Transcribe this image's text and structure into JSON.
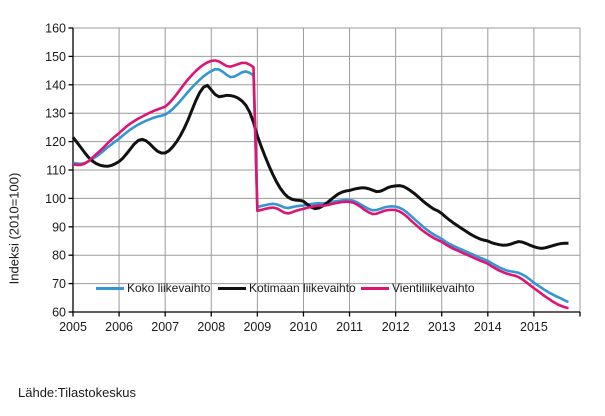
{
  "source": "Lähde:Tilastokeskus",
  "chart_data": {
    "type": "line",
    "title": "",
    "xlabel": "",
    "ylabel": "Indeksi (2010=100)",
    "ylim": [
      60,
      160
    ],
    "y_ticks": [
      60,
      70,
      80,
      90,
      100,
      110,
      120,
      130,
      140,
      150,
      160
    ],
    "x_range": [
      2005,
      2016
    ],
    "x_labels": [
      "2005",
      "2006",
      "2007",
      "2008",
      "2009",
      "2010",
      "2011",
      "2012",
      "2013",
      "2014",
      "2015"
    ],
    "points_per_year": 12,
    "x_start_year": 2005,
    "grid": true,
    "grid_color": "#9B9B9B",
    "axis_color": "#000000",
    "legend_position": "bottom-inside",
    "series": [
      {
        "name": "Koko liikevaihto",
        "color": "#3496D2",
        "line_width": 2.6,
        "values": [
          112.5,
          112.3,
          112.2,
          112.4,
          113.0,
          113.8,
          114.7,
          115.7,
          116.8,
          118.0,
          119.0,
          120.0,
          121.0,
          122.2,
          123.3,
          124.3,
          125.2,
          126.0,
          126.7,
          127.3,
          127.9,
          128.4,
          128.8,
          129.1,
          129.5,
          130.4,
          131.5,
          132.9,
          134.4,
          136.0,
          137.6,
          139.1,
          140.5,
          141.8,
          143.0,
          144.0,
          144.8,
          145.5,
          145.4,
          144.6,
          143.5,
          142.7,
          142.9,
          143.6,
          144.4,
          144.7,
          144.2,
          143.3,
          97.0,
          97.3,
          97.6,
          97.9,
          98.1,
          97.9,
          97.4,
          96.8,
          96.6,
          96.9,
          97.2,
          97.4,
          97.5,
          97.8,
          98.0,
          98.2,
          98.3,
          98.2,
          98.4,
          98.6,
          98.9,
          99.1,
          99.3,
          99.4,
          99.4,
          99.2,
          98.6,
          97.8,
          97.0,
          96.3,
          95.8,
          95.9,
          96.3,
          96.8,
          97.1,
          97.2,
          97.1,
          96.7,
          96.0,
          95.0,
          93.8,
          92.6,
          91.4,
          90.2,
          89.1,
          88.1,
          87.2,
          86.5,
          85.7,
          84.8,
          84.0,
          83.3,
          82.7,
          82.1,
          81.5,
          80.9,
          80.3,
          79.7,
          79.1,
          78.6,
          78.0,
          77.2,
          76.4,
          75.7,
          75.1,
          74.6,
          74.3,
          74.1,
          73.8,
          73.2,
          72.4,
          71.4,
          70.3,
          69.4,
          68.5,
          67.6,
          66.8,
          66.1,
          65.4,
          64.8,
          64.1,
          63.5
        ]
      },
      {
        "name": "Kotimaan liikevaihto",
        "color": "#111111",
        "line_width": 3.0,
        "values": [
          121.5,
          119.8,
          118.0,
          116.2,
          114.5,
          113.2,
          112.3,
          111.7,
          111.4,
          111.3,
          111.6,
          112.2,
          113.0,
          114.2,
          115.8,
          117.5,
          119.2,
          120.4,
          120.8,
          120.3,
          119.2,
          117.8,
          116.6,
          116.0,
          116.0,
          116.8,
          118.2,
          120.0,
          122.2,
          124.8,
          127.8,
          131.2,
          134.5,
          137.3,
          139.2,
          139.8,
          138.2,
          136.6,
          135.8,
          136.0,
          136.3,
          136.2,
          135.9,
          135.3,
          134.3,
          132.8,
          130.4,
          126.8,
          122.0,
          118.3,
          114.8,
          111.5,
          108.5,
          105.8,
          103.5,
          101.7,
          100.4,
          99.7,
          99.4,
          99.3,
          99.0,
          97.9,
          96.9,
          96.4,
          96.6,
          97.3,
          98.3,
          99.4,
          100.5,
          101.5,
          102.2,
          102.6,
          102.8,
          103.2,
          103.5,
          103.7,
          103.7,
          103.4,
          102.9,
          102.4,
          102.5,
          103.1,
          103.8,
          104.2,
          104.4,
          104.5,
          104.2,
          103.5,
          102.6,
          101.6,
          100.4,
          99.2,
          98.1,
          97.1,
          96.2,
          95.6,
          94.7,
          93.5,
          92.4,
          91.4,
          90.5,
          89.6,
          88.7,
          87.8,
          87.0,
          86.3,
          85.7,
          85.3,
          85.0,
          84.4,
          84.0,
          83.7,
          83.5,
          83.6,
          83.9,
          84.4,
          84.8,
          84.6,
          84.1,
          83.5,
          83.0,
          82.6,
          82.4,
          82.6,
          83.0,
          83.4,
          83.8,
          84.1,
          84.2,
          84.2
        ]
      },
      {
        "name": "Vientiliikevaihto",
        "color": "#DD1472",
        "line_width": 2.6,
        "values": [
          112.0,
          111.8,
          111.8,
          112.2,
          113.1,
          114.3,
          115.5,
          116.7,
          118.0,
          119.4,
          120.7,
          121.9,
          123.0,
          124.2,
          125.4,
          126.4,
          127.3,
          128.1,
          128.8,
          129.5,
          130.2,
          130.8,
          131.3,
          131.8,
          132.3,
          133.5,
          135.0,
          136.7,
          138.5,
          140.3,
          142.0,
          143.5,
          144.9,
          146.1,
          147.1,
          147.9,
          148.4,
          148.6,
          148.2,
          147.4,
          146.6,
          146.4,
          146.8,
          147.3,
          147.7,
          147.7,
          147.1,
          146.2,
          95.6,
          95.9,
          96.3,
          96.6,
          96.8,
          96.5,
          95.8,
          95.0,
          94.7,
          95.1,
          95.6,
          96.0,
          96.3,
          96.7,
          97.0,
          97.3,
          97.5,
          97.4,
          97.6,
          97.9,
          98.2,
          98.5,
          98.7,
          98.8,
          98.8,
          98.5,
          97.8,
          96.9,
          95.9,
          95.1,
          94.5,
          94.6,
          95.1,
          95.6,
          95.9,
          96.0,
          95.9,
          95.4,
          94.6,
          93.5,
          92.2,
          91.0,
          89.8,
          88.7,
          87.7,
          86.8,
          86.0,
          85.3,
          84.7,
          83.8,
          83.0,
          82.3,
          81.7,
          81.1,
          80.5,
          79.9,
          79.3,
          78.7,
          78.1,
          77.6,
          77.0,
          76.1,
          75.3,
          74.6,
          74.0,
          73.5,
          73.1,
          72.8,
          72.3,
          71.5,
          70.5,
          69.4,
          68.4,
          67.4,
          66.4,
          65.4,
          64.5,
          63.6,
          62.8,
          62.2,
          61.7,
          61.3
        ]
      }
    ]
  }
}
